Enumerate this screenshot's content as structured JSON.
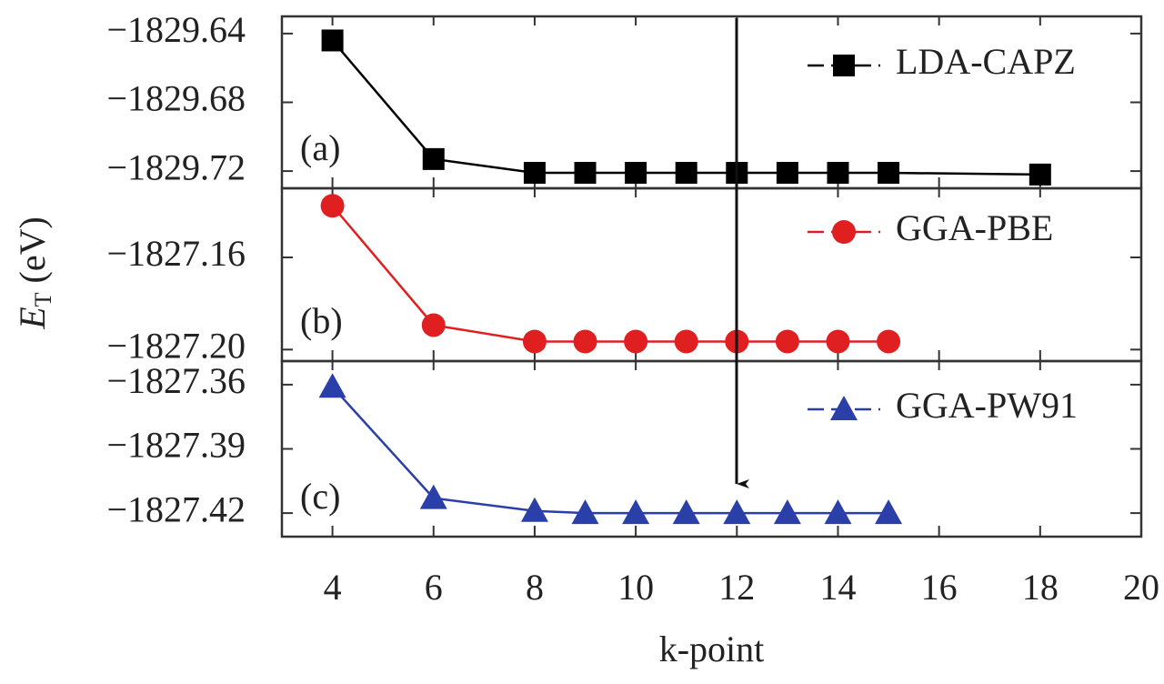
{
  "chart_data": [
    {
      "type": "line",
      "panel_label": "(a)",
      "x": [
        4,
        6,
        8,
        9,
        10,
        11,
        12,
        13,
        14,
        15,
        18
      ],
      "series": [
        {
          "name": "LDA-CAPZ",
          "color": "#000000",
          "marker": "square",
          "values": [
            -1829.644,
            -1829.713,
            -1829.721,
            -1829.721,
            -1829.721,
            -1829.721,
            -1829.721,
            -1829.721,
            -1829.721,
            -1829.721,
            -1829.722
          ]
        }
      ],
      "xlim": [
        3,
        20
      ],
      "xticks": [
        4,
        6,
        8,
        10,
        12,
        14,
        16,
        18,
        20
      ],
      "ylim": [
        -1829.73,
        -1829.63
      ],
      "yticks": [
        {
          "value": -1829.64,
          "label": "−1829.64"
        },
        {
          "value": -1829.68,
          "label": "−1829.68"
        },
        {
          "value": -1829.72,
          "label": "−1829.72"
        }
      ]
    },
    {
      "type": "line",
      "panel_label": "(b)",
      "ylabel": {
        "symbol": "E",
        "subscript": "T",
        "unit": "(eV)"
      },
      "x": [
        4,
        6,
        8,
        9,
        10,
        11,
        12,
        13,
        14,
        15
      ],
      "series": [
        {
          "name": "GGA-PBE",
          "color": "#e02020",
          "marker": "circle",
          "values": [
            -1827.1376,
            -1827.1894,
            -1827.1965,
            -1827.1965,
            -1827.1965,
            -1827.1965,
            -1827.1965,
            -1827.1965,
            -1827.1965,
            -1827.1965
          ]
        }
      ],
      "xlim": [
        3,
        20
      ],
      "xticks": [
        4,
        6,
        8,
        10,
        12,
        14,
        16,
        18,
        20
      ],
      "ylim": [
        -1827.205,
        -1827.13
      ],
      "yticks": [
        {
          "value": -1827.16,
          "label": "−1827.16"
        },
        {
          "value": -1827.2,
          "label": "−1827.20"
        }
      ]
    },
    {
      "type": "line",
      "panel_label": "(c)",
      "xlabel": "k-point",
      "x": [
        4,
        6,
        8,
        9,
        10,
        11,
        12,
        13,
        14,
        15
      ],
      "series": [
        {
          "name": "GGA-PW91",
          "color": "#2a3fa8",
          "marker": "triangle",
          "values": [
            -1827.361,
            -1827.413,
            -1827.419,
            -1827.42,
            -1827.42,
            -1827.42,
            -1827.42,
            -1827.42,
            -1827.42,
            -1827.42
          ]
        }
      ],
      "xlim": [
        3,
        20
      ],
      "xticks": [
        4,
        6,
        8,
        10,
        12,
        14,
        16,
        18,
        20
      ],
      "ylim": [
        -1827.431,
        -1827.349
      ],
      "yticks": [
        {
          "value": -1827.36,
          "label": "−1827.36"
        },
        {
          "value": -1827.39,
          "label": "−1827.39"
        },
        {
          "value": -1827.42,
          "label": "−1827.42"
        }
      ]
    }
  ]
}
